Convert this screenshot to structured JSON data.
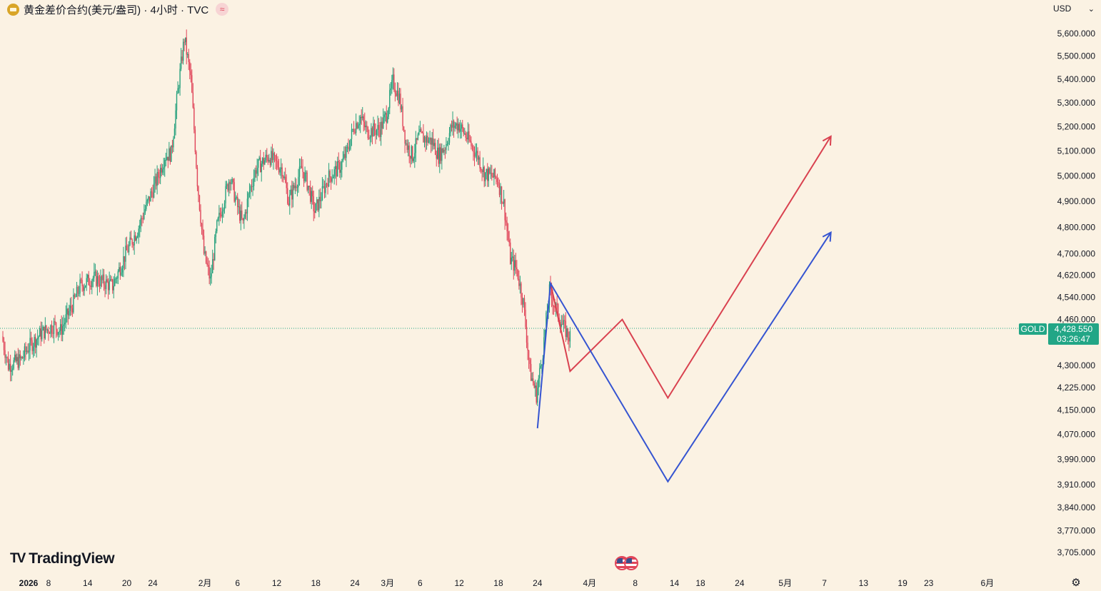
{
  "header": {
    "title": "黄金差价合约(美元/盎司) · 4小时 · TVC",
    "wave_icon": "≈"
  },
  "currency_select": {
    "value": "USD"
  },
  "brand": {
    "logo": "TV",
    "name": "TradingView"
  },
  "colors": {
    "background": "#fbf2e3",
    "up": "#26a17d",
    "down": "#e0465a",
    "projection_red": "#d9414f",
    "projection_blue": "#3554d1",
    "price_line": "#22a686"
  },
  "last_price": {
    "symbol": "GOLD",
    "price": "4,428.550",
    "countdown": "03:26:47"
  },
  "chart_data": {
    "type": "candlestick",
    "title": "黄金差价合约(美元/盎司) · 4小时 · TVC",
    "y_scale": "log",
    "ylim": [
      3680,
      5700
    ],
    "current_price": 4428.55,
    "y_ticks": [
      {
        "value": 5600,
        "label": "5,600.000"
      },
      {
        "value": 5500,
        "label": "5,500.000"
      },
      {
        "value": 5400,
        "label": "5,400.000"
      },
      {
        "value": 5300,
        "label": "5,300.000"
      },
      {
        "value": 5200,
        "label": "5,200.000"
      },
      {
        "value": 5100,
        "label": "5,100.000"
      },
      {
        "value": 5000,
        "label": "5,000.000"
      },
      {
        "value": 4900,
        "label": "4,900.000"
      },
      {
        "value": 4800,
        "label": "4,800.000"
      },
      {
        "value": 4700,
        "label": "4,700.000"
      },
      {
        "value": 4620,
        "label": "4,620.000"
      },
      {
        "value": 4540,
        "label": "4,540.000"
      },
      {
        "value": 4460,
        "label": "4,460.000"
      },
      {
        "value": 4300,
        "label": "4,300.000"
      },
      {
        "value": 4225,
        "label": "4,225.000"
      },
      {
        "value": 4150,
        "label": "4,150.000"
      },
      {
        "value": 4070,
        "label": "4,070.000"
      },
      {
        "value": 3990,
        "label": "3,990.000"
      },
      {
        "value": 3910,
        "label": "3,910.000"
      },
      {
        "value": 3840,
        "label": "3,840.000"
      },
      {
        "value": 3770,
        "label": "3,770.000"
      },
      {
        "value": 3705,
        "label": "3,705.000"
      }
    ],
    "x_ticks": [
      {
        "date": "2026-01-01",
        "label": "2026"
      },
      {
        "date": "2026-01-08",
        "label": "8"
      },
      {
        "date": "2026-01-14",
        "label": "14"
      },
      {
        "date": "2026-01-20",
        "label": "20"
      },
      {
        "date": "2026-01-24",
        "label": "24"
      },
      {
        "date": "2026-02-01",
        "label": "2月"
      },
      {
        "date": "2026-02-06",
        "label": "6"
      },
      {
        "date": "2026-02-12",
        "label": "12"
      },
      {
        "date": "2026-02-18",
        "label": "18"
      },
      {
        "date": "2026-02-24",
        "label": "24"
      },
      {
        "date": "2026-03-01",
        "label": "3月"
      },
      {
        "date": "2026-03-06",
        "label": "6"
      },
      {
        "date": "2026-03-12",
        "label": "12"
      },
      {
        "date": "2026-03-18",
        "label": "18"
      },
      {
        "date": "2026-03-24",
        "label": "24"
      },
      {
        "date": "2026-04-01",
        "label": "4月"
      },
      {
        "date": "2026-04-08",
        "label": "8"
      },
      {
        "date": "2026-04-14",
        "label": "14"
      },
      {
        "date": "2026-04-18",
        "label": "18"
      },
      {
        "date": "2026-04-24",
        "label": "24"
      },
      {
        "date": "2026-05-01",
        "label": "5月"
      },
      {
        "date": "2026-05-07",
        "label": "7"
      },
      {
        "date": "2026-05-13",
        "label": "13"
      },
      {
        "date": "2026-05-19",
        "label": "19"
      },
      {
        "date": "2026-05-23",
        "label": "23"
      },
      {
        "date": "2026-06-01",
        "label": "6月"
      }
    ],
    "price_path": [
      [
        "2026-01-01",
        4400
      ],
      [
        "2026-01-02",
        4300
      ],
      [
        "2026-01-04",
        4320
      ],
      [
        "2026-01-05",
        4360
      ],
      [
        "2026-01-07",
        4410
      ],
      [
        "2026-01-09",
        4440
      ],
      [
        "2026-01-10",
        4420
      ],
      [
        "2026-01-12",
        4520
      ],
      [
        "2026-01-13",
        4580
      ],
      [
        "2026-01-15",
        4610
      ],
      [
        "2026-01-17",
        4590
      ],
      [
        "2026-01-18",
        4580
      ],
      [
        "2026-01-20",
        4700
      ],
      [
        "2026-01-22",
        4800
      ],
      [
        "2026-01-23",
        4870
      ],
      [
        "2026-01-25",
        5000
      ],
      [
        "2026-01-26",
        5080
      ],
      [
        "2026-01-27",
        5090
      ],
      [
        "2026-01-28",
        5350
      ],
      [
        "2026-01-29",
        5580
      ],
      [
        "2026-01-30",
        5400
      ],
      [
        "2026-01-31",
        4980
      ],
      [
        "2026-02-01",
        4700
      ],
      [
        "2026-02-02",
        4600
      ],
      [
        "2026-02-03",
        4800
      ],
      [
        "2026-02-05",
        5000
      ],
      [
        "2026-02-06",
        4890
      ],
      [
        "2026-02-07",
        4810
      ],
      [
        "2026-02-08",
        4940
      ],
      [
        "2026-02-09",
        5030
      ],
      [
        "2026-02-11",
        5080
      ],
      [
        "2026-02-12",
        5050
      ],
      [
        "2026-02-13",
        5030
      ],
      [
        "2026-02-14",
        4900
      ],
      [
        "2026-02-16",
        5030
      ],
      [
        "2026-02-17",
        4960
      ],
      [
        "2026-02-18",
        4860
      ],
      [
        "2026-02-19",
        4920
      ],
      [
        "2026-02-20",
        4990
      ],
      [
        "2026-02-22",
        5040
      ],
      [
        "2026-02-23",
        5100
      ],
      [
        "2026-02-24",
        5200
      ],
      [
        "2026-02-25",
        5240
      ],
      [
        "2026-02-26",
        5180
      ],
      [
        "2026-02-28",
        5190
      ],
      [
        "2026-03-01",
        5250
      ],
      [
        "2026-03-02",
        5390
      ],
      [
        "2026-03-03",
        5320
      ],
      [
        "2026-03-04",
        5130
      ],
      [
        "2026-03-05",
        5080
      ],
      [
        "2026-03-06",
        5160
      ],
      [
        "2026-03-08",
        5140
      ],
      [
        "2026-03-09",
        5080
      ],
      [
        "2026-03-10",
        5120
      ],
      [
        "2026-03-11",
        5200
      ],
      [
        "2026-03-12",
        5210
      ],
      [
        "2026-03-13",
        5170
      ],
      [
        "2026-03-15",
        5080
      ],
      [
        "2026-03-16",
        5010
      ],
      [
        "2026-03-17",
        5000
      ],
      [
        "2026-03-18",
        4990
      ],
      [
        "2026-03-19",
        4890
      ],
      [
        "2026-03-20",
        4680
      ],
      [
        "2026-03-21",
        4640
      ],
      [
        "2026-03-22",
        4520
      ],
      [
        "2026-03-23",
        4280
      ],
      [
        "2026-03-24",
        4200
      ],
      [
        "2026-03-25",
        4350
      ],
      [
        "2026-03-26",
        4560
      ],
      [
        "2026-03-27",
        4500
      ],
      [
        "2026-03-28",
        4440
      ],
      [
        "2026-03-29",
        4400
      ]
    ],
    "projections": [
      {
        "color": "#d9414f",
        "points": [
          [
            "2026-03-26",
            4590
          ],
          [
            "2026-03-29",
            4280
          ],
          [
            "2026-04-06",
            4460
          ],
          [
            "2026-04-13",
            4190
          ],
          [
            "2026-05-08",
            5160
          ]
        ]
      },
      {
        "color": "#3554d1",
        "points": [
          [
            "2026-03-24",
            4090
          ],
          [
            "2026-03-26",
            4590
          ],
          [
            "2026-04-13",
            3920
          ],
          [
            "2026-05-08",
            4780
          ]
        ]
      }
    ]
  }
}
